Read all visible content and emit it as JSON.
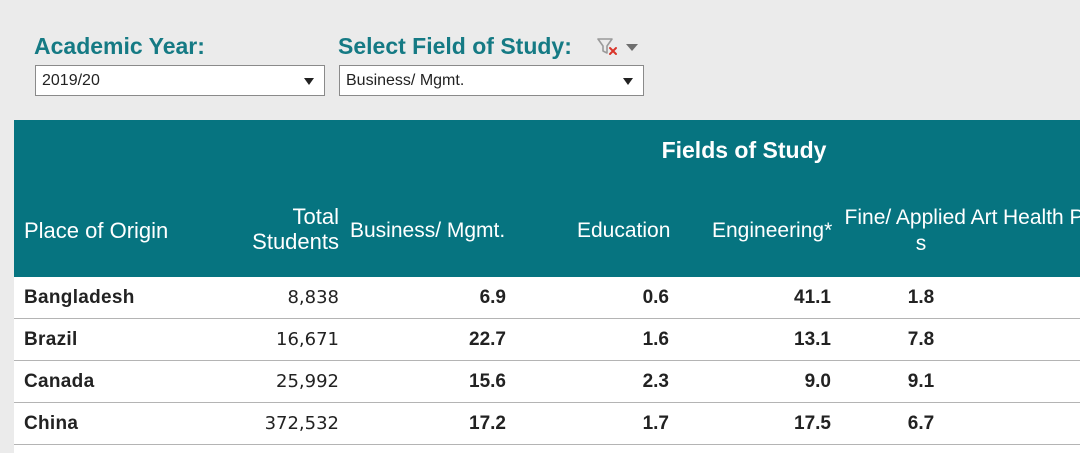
{
  "filters": {
    "academic_year": {
      "label": "Academic Year:",
      "value": "2019/20"
    },
    "field_of_study": {
      "label": "Select Field of Study:",
      "value": "Business/ Mgmt."
    }
  },
  "icons": {
    "clear_filter": "filter-clear-icon",
    "menu": "caret-down-icon"
  },
  "colors": {
    "accent": "#157a84",
    "header_bg": "#067480",
    "clear_filter_red": "#d9352a"
  },
  "table": {
    "super_header": "Fields of Study",
    "columns": {
      "origin": "Place of Origin",
      "total_line1": "Total",
      "total_line2": "Students",
      "business": "Business/ Mgmt.",
      "education": "Education",
      "engineering": "Engineering*",
      "fine_arts_line1": "Fine/ Applied Art",
      "fine_arts_line2": "s",
      "health": "Health P"
    },
    "rows": [
      {
        "origin": "Bangladesh",
        "total": "8,838",
        "business": "6.9",
        "education": "0.6",
        "engineering": "41.1",
        "fine_arts": "1.8"
      },
      {
        "origin": "Brazil",
        "total": "16,671",
        "business": "22.7",
        "education": "1.6",
        "engineering": "13.1",
        "fine_arts": "7.8"
      },
      {
        "origin": "Canada",
        "total": "25,992",
        "business": "15.6",
        "education": "2.3",
        "engineering": "9.0",
        "fine_arts": "9.1"
      },
      {
        "origin": "China",
        "total": "372,532",
        "business": "17.2",
        "education": "1.7",
        "engineering": "17.5",
        "fine_arts": "6.7"
      }
    ]
  }
}
